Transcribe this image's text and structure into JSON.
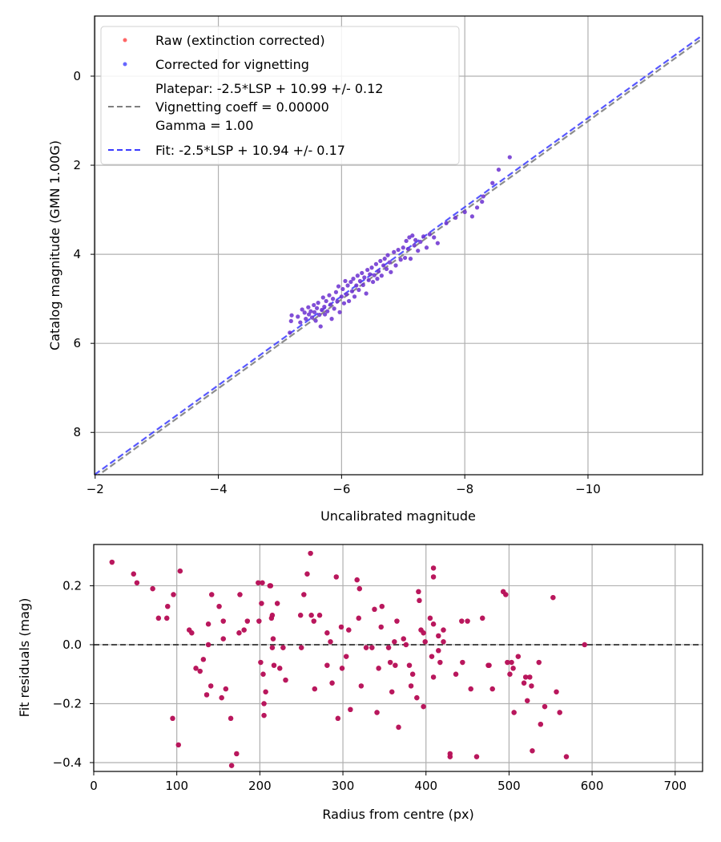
{
  "chart_data": [
    {
      "type": "scatter",
      "title": "",
      "xlabel": "Uncalibrated magnitude",
      "ylabel": "Catalog magnitude (GMN 1.00G)",
      "xlim": [
        -1.99,
        -11.86
      ],
      "ylim": [
        8.95,
        -1.35
      ],
      "x_inverted": true,
      "y_inverted": true,
      "xticks": [
        -2,
        -4,
        -6,
        -8,
        -10
      ],
      "xtick_labels": [
        "−2",
        "−4",
        "−6",
        "−8",
        "−10"
      ],
      "yticks": [
        0,
        2,
        4,
        6,
        8
      ],
      "ytick_labels": [
        "0",
        "2",
        "4",
        "6",
        "8"
      ],
      "grid": true,
      "legend_position": "upper left",
      "legend": [
        {
          "label": "Raw (extinction corrected)",
          "marker": "dot",
          "color": "#ff4b4b"
        },
        {
          "label": "Corrected for vignetting",
          "marker": "dot",
          "color": "#4b4bff"
        },
        {
          "label_lines": [
            "Platepar: -2.5*LSP + 10.99 +/- 0.12",
            "Vignetting coeff = 0.00000",
            "Gamma = 1.00"
          ],
          "marker": "dashed-line",
          "color": "#808080"
        },
        {
          "label": "Fit: -2.5*LSP + 10.94 +/- 0.17",
          "marker": "dashed-line",
          "color": "#3a3aff"
        }
      ],
      "lines": [
        {
          "name": "Platepar",
          "slope": 1.0,
          "intercept": 10.99,
          "color": "#808080",
          "style": "dashed"
        },
        {
          "name": "Fit",
          "slope": 1.0,
          "intercept": 10.94,
          "color": "#3a3aff",
          "style": "dashed"
        }
      ],
      "series": [
        {
          "name": "Corrected for vignetting (overlaid on Raw)",
          "color": "#5a10c8",
          "points": [
            [
              -5.16,
              5.76
            ],
            [
              -5.18,
              5.5
            ],
            [
              -5.19,
              5.37
            ],
            [
              -5.29,
              5.4
            ],
            [
              -5.33,
              5.53
            ],
            [
              -5.36,
              5.24
            ],
            [
              -5.4,
              5.31
            ],
            [
              -5.42,
              5.45
            ],
            [
              -5.46,
              5.19
            ],
            [
              -5.47,
              5.35
            ],
            [
              -5.5,
              5.28
            ],
            [
              -5.52,
              5.42
            ],
            [
              -5.55,
              5.14
            ],
            [
              -5.56,
              5.3
            ],
            [
              -5.58,
              5.49
            ],
            [
              -5.6,
              5.21
            ],
            [
              -5.62,
              5.09
            ],
            [
              -5.64,
              5.36
            ],
            [
              -5.66,
              5.62
            ],
            [
              -5.68,
              5.25
            ],
            [
              -5.7,
              4.97
            ],
            [
              -5.72,
              5.18
            ],
            [
              -5.73,
              5.35
            ],
            [
              -5.75,
              5.05
            ],
            [
              -5.77,
              5.28
            ],
            [
              -5.8,
              4.92
            ],
            [
              -5.82,
              5.13
            ],
            [
              -5.84,
              5.45
            ],
            [
              -5.86,
              5.0
            ],
            [
              -5.88,
              5.22
            ],
            [
              -5.91,
              4.85
            ],
            [
              -5.93,
              5.06
            ],
            [
              -5.95,
              4.72
            ],
            [
              -5.97,
              5.3
            ],
            [
              -6.0,
              4.95
            ],
            [
              -6.02,
              4.78
            ],
            [
              -6.04,
              5.1
            ],
            [
              -6.06,
              4.6
            ],
            [
              -6.08,
              4.9
            ],
            [
              -6.1,
              4.7
            ],
            [
              -6.12,
              5.05
            ],
            [
              -6.15,
              4.62
            ],
            [
              -6.17,
              4.83
            ],
            [
              -6.19,
              4.55
            ],
            [
              -6.21,
              4.95
            ],
            [
              -6.24,
              4.7
            ],
            [
              -6.26,
              4.48
            ],
            [
              -6.28,
              4.8
            ],
            [
              -6.3,
              4.6
            ],
            [
              -6.33,
              4.42
            ],
            [
              -6.35,
              4.69
            ],
            [
              -6.37,
              4.52
            ],
            [
              -6.4,
              4.88
            ],
            [
              -6.42,
              4.35
            ],
            [
              -6.44,
              4.58
            ],
            [
              -6.46,
              4.45
            ],
            [
              -6.49,
              4.3
            ],
            [
              -6.51,
              4.62
            ],
            [
              -6.53,
              4.47
            ],
            [
              -6.56,
              4.22
            ],
            [
              -6.58,
              4.55
            ],
            [
              -6.6,
              4.38
            ],
            [
              -6.63,
              4.15
            ],
            [
              -6.65,
              4.48
            ],
            [
              -6.68,
              4.25
            ],
            [
              -6.7,
              4.1
            ],
            [
              -6.73,
              4.33
            ],
            [
              -6.75,
              4.02
            ],
            [
              -6.78,
              4.18
            ],
            [
              -6.8,
              4.4
            ],
            [
              -6.85,
              3.95
            ],
            [
              -6.88,
              4.25
            ],
            [
              -6.92,
              3.9
            ],
            [
              -6.96,
              4.12
            ],
            [
              -7.0,
              3.85
            ],
            [
              -7.03,
              4.08
            ],
            [
              -7.05,
              3.7
            ],
            [
              -7.08,
              3.88
            ],
            [
              -7.1,
              3.62
            ],
            [
              -7.12,
              4.1
            ],
            [
              -7.15,
              3.58
            ],
            [
              -7.18,
              3.8
            ],
            [
              -7.2,
              3.68
            ],
            [
              -7.24,
              3.92
            ],
            [
              -7.28,
              3.72
            ],
            [
              -7.33,
              3.6
            ],
            [
              -7.38,
              3.85
            ],
            [
              -7.43,
              3.55
            ],
            [
              -7.5,
              3.62
            ],
            [
              -7.56,
              3.75
            ],
            [
              -7.7,
              3.3
            ],
            [
              -7.85,
              3.18
            ],
            [
              -8.0,
              3.05
            ],
            [
              -8.12,
              3.15
            ],
            [
              -8.28,
              2.82
            ],
            [
              -8.3,
              2.7
            ],
            [
              -8.45,
              2.4
            ],
            [
              -8.55,
              2.1
            ],
            [
              -8.73,
              1.82
            ],
            [
              -8.2,
              2.95
            ]
          ]
        }
      ]
    },
    {
      "type": "scatter",
      "title": "",
      "xlabel": "Radius from centre (px)",
      "ylabel": "Fit residuals (mag)",
      "xlim": [
        0,
        733
      ],
      "ylim": [
        -0.43,
        0.34
      ],
      "xticks": [
        0,
        100,
        200,
        300,
        400,
        500,
        600,
        700
      ],
      "xtick_labels": [
        "0",
        "100",
        "200",
        "300",
        "400",
        "500",
        "600",
        "700"
      ],
      "yticks": [
        0.2,
        0.0,
        -0.2,
        -0.4
      ],
      "ytick_labels": [
        "0.2",
        "0.0",
        "−0.2",
        "−0.4"
      ],
      "grid": true,
      "reference_line": {
        "y": 0.0,
        "color": "#333333",
        "style": "dashed"
      },
      "series": [
        {
          "name": "Residuals",
          "color": "#b0105e",
          "points": [
            [
              22,
              0.28
            ],
            [
              48,
              0.24
            ],
            [
              52,
              0.21
            ],
            [
              71,
              0.19
            ],
            [
              78,
              0.09
            ],
            [
              88,
              0.09
            ],
            [
              89,
              0.13
            ],
            [
              95,
              -0.25
            ],
            [
              96,
              0.17
            ],
            [
              102,
              -0.34
            ],
            [
              104,
              0.25
            ],
            [
              115,
              0.05
            ],
            [
              118,
              0.04
            ],
            [
              123,
              -0.08
            ],
            [
              128,
              -0.09
            ],
            [
              132,
              -0.05
            ],
            [
              136,
              -0.17
            ],
            [
              138,
              0.07
            ],
            [
              138,
              0.0
            ],
            [
              141,
              -0.14
            ],
            [
              142,
              0.17
            ],
            [
              151,
              0.13
            ],
            [
              154,
              -0.18
            ],
            [
              156,
              0.08
            ],
            [
              156,
              0.02
            ],
            [
              159,
              -0.15
            ],
            [
              165,
              -0.25
            ],
            [
              166,
              -0.41
            ],
            [
              172,
              -0.37
            ],
            [
              175,
              0.04
            ],
            [
              176,
              0.17
            ],
            [
              181,
              0.05
            ],
            [
              185,
              0.08
            ],
            [
              198,
              0.21
            ],
            [
              199,
              0.08
            ],
            [
              202,
              0.14
            ],
            [
              203,
              0.21
            ],
            [
              205,
              -0.24
            ],
            [
              205,
              -0.2
            ],
            [
              201,
              -0.06
            ],
            [
              204,
              -0.1
            ],
            [
              207,
              -0.16
            ],
            [
              212,
              0.2
            ],
            [
              213,
              0.2
            ],
            [
              214,
              0.09
            ],
            [
              215,
              0.1
            ],
            [
              215,
              -0.01
            ],
            [
              216,
              0.02
            ],
            [
              217,
              -0.07
            ],
            [
              221,
              0.14
            ],
            [
              224,
              -0.08
            ],
            [
              228,
              -0.01
            ],
            [
              231,
              -0.12
            ],
            [
              249,
              0.1
            ],
            [
              250,
              -0.01
            ],
            [
              253,
              0.17
            ],
            [
              257,
              0.24
            ],
            [
              261,
              0.31
            ],
            [
              262,
              0.1
            ],
            [
              265,
              0.08
            ],
            [
              266,
              -0.15
            ],
            [
              272,
              0.1
            ],
            [
              281,
              -0.07
            ],
            [
              281,
              0.04
            ],
            [
              285,
              0.01
            ],
            [
              287,
              -0.13
            ],
            [
              292,
              0.23
            ],
            [
              294,
              -0.25
            ],
            [
              298,
              0.06
            ],
            [
              299,
              -0.08
            ],
            [
              304,
              -0.04
            ],
            [
              307,
              0.05
            ],
            [
              309,
              -0.22
            ],
            [
              317,
              0.22
            ],
            [
              319,
              0.09
            ],
            [
              322,
              -0.14
            ],
            [
              320,
              0.19
            ],
            [
              328,
              -0.01
            ],
            [
              335,
              -0.01
            ],
            [
              338,
              0.12
            ],
            [
              341,
              -0.23
            ],
            [
              343,
              -0.08
            ],
            [
              346,
              0.06
            ],
            [
              347,
              0.13
            ],
            [
              355,
              -0.01
            ],
            [
              357,
              -0.06
            ],
            [
              359,
              -0.16
            ],
            [
              362,
              0.01
            ],
            [
              363,
              -0.07
            ],
            [
              365,
              0.08
            ],
            [
              367,
              -0.28
            ],
            [
              373,
              0.02
            ],
            [
              376,
              0.0
            ],
            [
              380,
              -0.07
            ],
            [
              382,
              -0.14
            ],
            [
              384,
              -0.1
            ],
            [
              389,
              -0.18
            ],
            [
              391,
              0.18
            ],
            [
              392,
              0.15
            ],
            [
              394,
              0.05
            ],
            [
              397,
              0.04
            ],
            [
              397,
              -0.21
            ],
            [
              399,
              0.01
            ],
            [
              405,
              0.09
            ],
            [
              407,
              -0.04
            ],
            [
              409,
              0.07
            ],
            [
              409,
              0.26
            ],
            [
              409,
              0.23
            ],
            [
              409,
              -0.11
            ],
            [
              415,
              0.03
            ],
            [
              415,
              -0.02
            ],
            [
              417,
              -0.06
            ],
            [
              421,
              0.05
            ],
            [
              421,
              0.01
            ],
            [
              429,
              -0.38
            ],
            [
              429,
              -0.37
            ],
            [
              436,
              -0.1
            ],
            [
              443,
              0.08
            ],
            [
              444,
              -0.06
            ],
            [
              450,
              0.08
            ],
            [
              454,
              -0.15
            ],
            [
              461,
              -0.38
            ],
            [
              468,
              0.09
            ],
            [
              475,
              -0.07
            ],
            [
              476,
              -0.07
            ],
            [
              480,
              -0.15
            ],
            [
              493,
              0.18
            ],
            [
              496,
              0.17
            ],
            [
              498,
              -0.06
            ],
            [
              501,
              -0.1
            ],
            [
              503,
              -0.06
            ],
            [
              505,
              -0.08
            ],
            [
              506,
              -0.23
            ],
            [
              511,
              -0.04
            ],
            [
              518,
              -0.13
            ],
            [
              520,
              -0.11
            ],
            [
              522,
              -0.19
            ],
            [
              525,
              -0.11
            ],
            [
              527,
              -0.14
            ],
            [
              528,
              -0.36
            ],
            [
              536,
              -0.06
            ],
            [
              538,
              -0.27
            ],
            [
              543,
              -0.21
            ],
            [
              553,
              0.16
            ],
            [
              557,
              -0.16
            ],
            [
              561,
              -0.23
            ],
            [
              569,
              -0.38
            ],
            [
              591,
              0.0
            ]
          ]
        }
      ]
    }
  ],
  "figure": {
    "top_plot": {
      "xlabel": "Uncalibrated magnitude",
      "ylabel": "Catalog magnitude (GMN 1.00G)"
    },
    "bottom_plot": {
      "xlabel": "Radius from centre (px)",
      "ylabel": "Fit residuals (mag)"
    }
  }
}
